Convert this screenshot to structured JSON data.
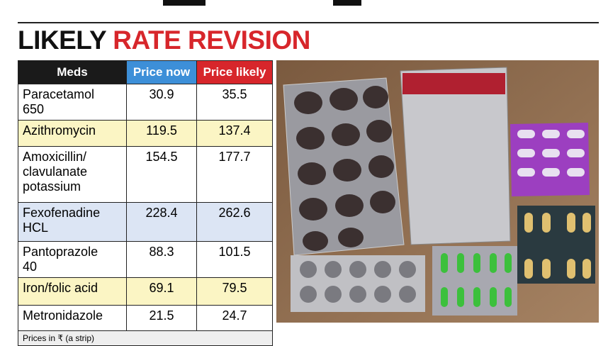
{
  "header": {
    "title_black": "LIKELY",
    "title_red": "RATE REVISION"
  },
  "table": {
    "columns": [
      "Meds",
      "Price now",
      "Price likely"
    ],
    "rows": [
      [
        "Paracetamol 650",
        30.9,
        35.5
      ],
      [
        "Azithromycin",
        119.5,
        137.4
      ],
      [
        "Amoxicillin/ clavulanate potassium",
        154.5,
        177.7
      ],
      [
        "Fexofenadine HCL",
        228.4,
        262.6
      ],
      [
        "Pantoprazole 40",
        88.3,
        101.5
      ],
      [
        "Iron/folic acid",
        69.1,
        79.5
      ],
      [
        "Metronidazole",
        21.5,
        24.7
      ]
    ],
    "note": "Prices in ₹ (a strip)"
  }
}
